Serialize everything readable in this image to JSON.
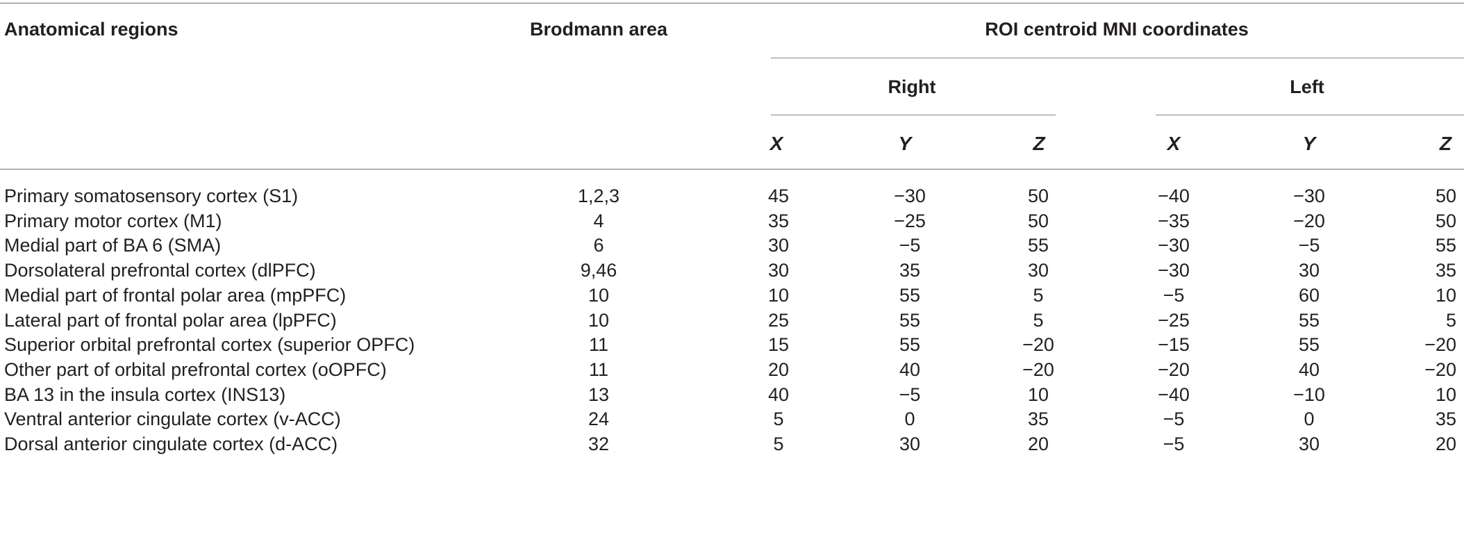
{
  "header": {
    "col_region": "Anatomical regions",
    "col_brodmann": "Brodmann area",
    "col_coords": "ROI centroid MNI coordinates",
    "group_right": "Right",
    "group_left": "Left",
    "axes": [
      "X",
      "Y",
      "Z",
      "X",
      "Y",
      "Z"
    ]
  },
  "rows": [
    {
      "region": "Primary somatosensory cortex (S1)",
      "ba": "1,2,3",
      "rx": "45",
      "ry": "−30",
      "rz": "50",
      "lx": "−40",
      "ly": "−30",
      "lz": "50"
    },
    {
      "region": "Primary motor cortex (M1)",
      "ba": "4",
      "rx": "35",
      "ry": "−25",
      "rz": "50",
      "lx": "−35",
      "ly": "−20",
      "lz": "50"
    },
    {
      "region": "Medial part of BA 6 (SMA)",
      "ba": "6",
      "rx": "30",
      "ry": "−5",
      "rz": "55",
      "lx": "−30",
      "ly": "−5",
      "lz": "55"
    },
    {
      "region": "Dorsolateral prefrontal cortex (dlPFC)",
      "ba": "9,46",
      "rx": "30",
      "ry": "35",
      "rz": "30",
      "lx": "−30",
      "ly": "30",
      "lz": "35"
    },
    {
      "region": "Medial part of frontal polar area (mpPFC)",
      "ba": "10",
      "rx": "10",
      "ry": "55",
      "rz": "5",
      "lx": "−5",
      "ly": "60",
      "lz": "10"
    },
    {
      "region": "Lateral part of frontal polar area (lpPFC)",
      "ba": "10",
      "rx": "25",
      "ry": "55",
      "rz": "5",
      "lx": "−25",
      "ly": "55",
      "lz": "5"
    },
    {
      "region": "Superior orbital prefrontal cortex (superior OPFC)",
      "ba": "11",
      "rx": "15",
      "ry": "55",
      "rz": "−20",
      "lx": "−15",
      "ly": "55",
      "lz": "−20"
    },
    {
      "region": "Other part of orbital prefrontal cortex (oOPFC)",
      "ba": "11",
      "rx": "20",
      "ry": "40",
      "rz": "−20",
      "lx": "−20",
      "ly": "40",
      "lz": "−20"
    },
    {
      "region": "BA 13 in the insula cortex (INS13)",
      "ba": "13",
      "rx": "40",
      "ry": "−5",
      "rz": "10",
      "lx": "−40",
      "ly": "−10",
      "lz": "10"
    },
    {
      "region": "Ventral anterior cingulate cortex (v-ACC)",
      "ba": "24",
      "rx": "5",
      "ry": "0",
      "rz": "35",
      "lx": "−5",
      "ly": "0",
      "lz": "35"
    },
    {
      "region": "Dorsal anterior cingulate cortex (d-ACC)",
      "ba": "32",
      "rx": "5",
      "ry": "30",
      "rz": "20",
      "lx": "−5",
      "ly": "30",
      "lz": "20"
    }
  ]
}
